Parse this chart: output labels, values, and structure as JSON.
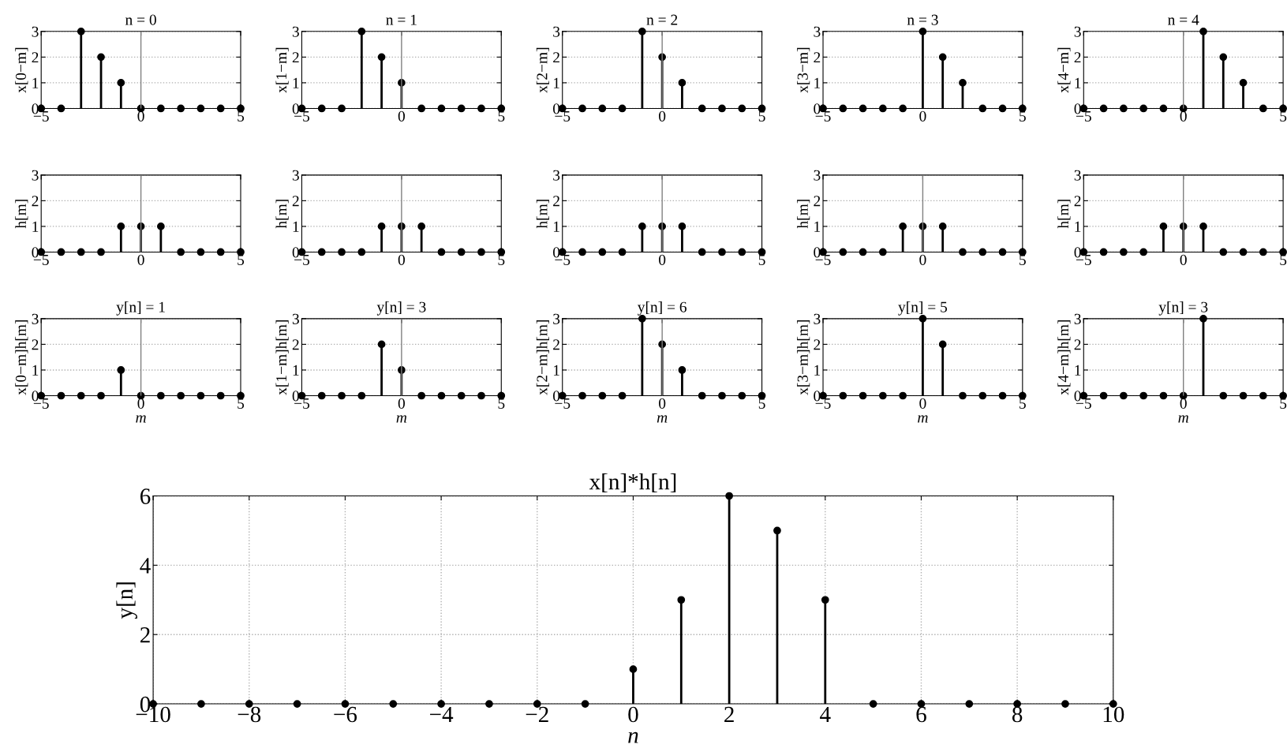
{
  "chart_data": [
    {
      "type": "lollipop",
      "title": "n = 0",
      "ylabel": "x[0−m]",
      "x": [
        -5,
        -4,
        -3,
        -2,
        -1,
        0,
        1,
        2,
        3,
        4,
        5
      ],
      "values": [
        0,
        0,
        3,
        2,
        1,
        0,
        0,
        0,
        0,
        0,
        0
      ],
      "xlim": [
        -5,
        5
      ],
      "ylim": [
        0,
        3
      ],
      "xticks": [
        {
          "value": -5,
          "label": "−5"
        },
        0,
        5
      ],
      "yticks": [
        0,
        1,
        2,
        3
      ],
      "grid": "y",
      "marker": "circle",
      "ref_lines": [
        {
          "axis": "x",
          "value": 0,
          "color": "#808080"
        }
      ]
    },
    {
      "type": "lollipop",
      "title": "n = 1",
      "ylabel": "x[1−m]",
      "x": [
        -5,
        -4,
        -3,
        -2,
        -1,
        0,
        1,
        2,
        3,
        4,
        5
      ],
      "values": [
        0,
        0,
        0,
        3,
        2,
        1,
        0,
        0,
        0,
        0,
        0
      ],
      "xlim": [
        -5,
        5
      ],
      "ylim": [
        0,
        3
      ],
      "xticks": [
        {
          "value": -5,
          "label": "−5"
        },
        0,
        5
      ],
      "yticks": [
        0,
        1,
        2,
        3
      ],
      "grid": "y",
      "marker": "circle",
      "ref_lines": [
        {
          "axis": "x",
          "value": 0,
          "color": "#808080"
        }
      ]
    },
    {
      "type": "lollipop",
      "title": "n = 2",
      "ylabel": "x[2−m]",
      "x": [
        -5,
        -4,
        -3,
        -2,
        -1,
        0,
        1,
        2,
        3,
        4,
        5
      ],
      "values": [
        0,
        0,
        0,
        0,
        3,
        2,
        1,
        0,
        0,
        0,
        0
      ],
      "xlim": [
        -5,
        5
      ],
      "ylim": [
        0,
        3
      ],
      "xticks": [
        {
          "value": -5,
          "label": "−5"
        },
        0,
        5
      ],
      "yticks": [
        0,
        1,
        2,
        3
      ],
      "grid": "y",
      "marker": "circle",
      "ref_lines": [
        {
          "axis": "x",
          "value": 0,
          "color": "#808080"
        }
      ]
    },
    {
      "type": "lollipop",
      "title": "n = 3",
      "ylabel": "x[3−m]",
      "x": [
        -5,
        -4,
        -3,
        -2,
        -1,
        0,
        1,
        2,
        3,
        4,
        5
      ],
      "values": [
        0,
        0,
        0,
        0,
        0,
        3,
        2,
        1,
        0,
        0,
        0
      ],
      "xlim": [
        -5,
        5
      ],
      "ylim": [
        0,
        3
      ],
      "xticks": [
        {
          "value": -5,
          "label": "−5"
        },
        0,
        5
      ],
      "yticks": [
        0,
        1,
        2,
        3
      ],
      "grid": "y",
      "marker": "circle"
    },
    {
      "type": "lollipop",
      "title": "n = 4",
      "ylabel": "x[4−m]",
      "x": [
        -5,
        -4,
        -3,
        -2,
        -1,
        0,
        1,
        2,
        3,
        4,
        5
      ],
      "values": [
        0,
        0,
        0,
        0,
        0,
        0,
        3,
        2,
        1,
        0,
        0
      ],
      "xlim": [
        -5,
        5
      ],
      "ylim": [
        0,
        3
      ],
      "xticks": [
        {
          "value": -5,
          "label": "−5"
        },
        0,
        5
      ],
      "yticks": [
        0,
        1,
        2,
        3
      ],
      "grid": "y",
      "marker": "circle",
      "ref_lines": [
        {
          "axis": "x",
          "value": 0,
          "color": "#808080"
        }
      ]
    },
    {
      "type": "lollipop",
      "ylabel": "h[m]",
      "x": [
        -5,
        -4,
        -3,
        -2,
        -1,
        0,
        1,
        2,
        3,
        4,
        5
      ],
      "values": [
        0,
        0,
        0,
        0,
        1,
        1,
        1,
        0,
        0,
        0,
        0
      ],
      "xlim": [
        -5,
        5
      ],
      "ylim": [
        0,
        3
      ],
      "xticks": [
        {
          "value": -5,
          "label": "−5"
        },
        0,
        5
      ],
      "yticks": [
        0,
        1,
        2,
        3
      ],
      "grid": "y",
      "marker": "circle",
      "ref_lines": [
        {
          "axis": "x",
          "value": 0,
          "color": "#808080"
        }
      ]
    },
    {
      "type": "lollipop",
      "ylabel": "h[m]",
      "x": [
        -5,
        -4,
        -3,
        -2,
        -1,
        0,
        1,
        2,
        3,
        4,
        5
      ],
      "values": [
        0,
        0,
        0,
        0,
        1,
        1,
        1,
        0,
        0,
        0,
        0
      ],
      "xlim": [
        -5,
        5
      ],
      "ylim": [
        0,
        3
      ],
      "xticks": [
        {
          "value": -5,
          "label": "−5"
        },
        0,
        5
      ],
      "yticks": [
        0,
        1,
        2,
        3
      ],
      "grid": "y",
      "marker": "circle",
      "ref_lines": [
        {
          "axis": "x",
          "value": 0,
          "color": "#808080"
        }
      ]
    },
    {
      "type": "lollipop",
      "ylabel": "h[m]",
      "x": [
        -5,
        -4,
        -3,
        -2,
        -1,
        0,
        1,
        2,
        3,
        4,
        5
      ],
      "values": [
        0,
        0,
        0,
        0,
        1,
        1,
        1,
        0,
        0,
        0,
        0
      ],
      "xlim": [
        -5,
        5
      ],
      "ylim": [
        0,
        3
      ],
      "xticks": [
        {
          "value": -5,
          "label": "−5"
        },
        0,
        5
      ],
      "yticks": [
        0,
        1,
        2,
        3
      ],
      "grid": "y",
      "marker": "circle",
      "ref_lines": [
        {
          "axis": "x",
          "value": 0,
          "color": "#808080"
        }
      ]
    },
    {
      "type": "lollipop",
      "ylabel": "h[m]",
      "x": [
        -5,
        -4,
        -3,
        -2,
        -1,
        0,
        1,
        2,
        3,
        4,
        5
      ],
      "values": [
        0,
        0,
        0,
        0,
        1,
        1,
        1,
        0,
        0,
        0,
        0
      ],
      "xlim": [
        -5,
        5
      ],
      "ylim": [
        0,
        3
      ],
      "xticks": [
        {
          "value": -5,
          "label": "−5"
        },
        0,
        5
      ],
      "yticks": [
        0,
        1,
        2,
        3
      ],
      "grid": "y",
      "marker": "circle",
      "ref_lines": [
        {
          "axis": "x",
          "value": 0,
          "color": "#808080"
        }
      ]
    },
    {
      "type": "lollipop",
      "ylabel": "h[m]",
      "x": [
        -5,
        -4,
        -3,
        -2,
        -1,
        0,
        1,
        2,
        3,
        4,
        5
      ],
      "values": [
        0,
        0,
        0,
        0,
        1,
        1,
        1,
        0,
        0,
        0,
        0
      ],
      "xlim": [
        -5,
        5
      ],
      "ylim": [
        0,
        3
      ],
      "xticks": [
        {
          "value": -5,
          "label": "−5"
        },
        0,
        5
      ],
      "yticks": [
        0,
        1,
        2,
        3
      ],
      "grid": "y",
      "marker": "circle",
      "ref_lines": [
        {
          "axis": "x",
          "value": 0,
          "color": "#808080"
        }
      ]
    },
    {
      "type": "lollipop",
      "title": "y[n] = 1",
      "ylabel": "x[0−m]h[m]",
      "xlabel": "m",
      "x": [
        -5,
        -4,
        -3,
        -2,
        -1,
        0,
        1,
        2,
        3,
        4,
        5
      ],
      "values": [
        0,
        0,
        0,
        0,
        1,
        0,
        0,
        0,
        0,
        0,
        0
      ],
      "xlim": [
        -5,
        5
      ],
      "ylim": [
        0,
        3
      ],
      "xticks": [
        {
          "value": -5,
          "label": "−5"
        },
        0,
        5
      ],
      "yticks": [
        0,
        1,
        2,
        3
      ],
      "grid": "y",
      "marker": "circle",
      "ref_lines": [
        {
          "axis": "x",
          "value": 0,
          "color": "#808080"
        }
      ]
    },
    {
      "type": "lollipop",
      "title": "y[n] = 3",
      "ylabel": "x[1−m]h[m]",
      "xlabel": "m",
      "x": [
        -5,
        -4,
        -3,
        -2,
        -1,
        0,
        1,
        2,
        3,
        4,
        5
      ],
      "values": [
        0,
        0,
        0,
        0,
        2,
        1,
        0,
        0,
        0,
        0,
        0
      ],
      "xlim": [
        -5,
        5
      ],
      "ylim": [
        0,
        3
      ],
      "xticks": [
        {
          "value": -5,
          "label": "−5"
        },
        0,
        5
      ],
      "yticks": [
        0,
        1,
        2,
        3
      ],
      "grid": "y",
      "marker": "circle",
      "ref_lines": [
        {
          "axis": "x",
          "value": 0,
          "color": "#808080"
        }
      ]
    },
    {
      "type": "lollipop",
      "title": "y[n] = 6",
      "ylabel": "x[2−m]h[m]",
      "xlabel": "m",
      "x": [
        -5,
        -4,
        -3,
        -2,
        -1,
        0,
        1,
        2,
        3,
        4,
        5
      ],
      "values": [
        0,
        0,
        0,
        0,
        3,
        2,
        1,
        0,
        0,
        0,
        0
      ],
      "xlim": [
        -5,
        5
      ],
      "ylim": [
        0,
        3
      ],
      "xticks": [
        {
          "value": -5,
          "label": "−5"
        },
        0,
        5
      ],
      "yticks": [
        0,
        1,
        2,
        3
      ],
      "grid": "y",
      "marker": "circle",
      "ref_lines": [
        {
          "axis": "x",
          "value": 0,
          "color": "#808080"
        }
      ]
    },
    {
      "type": "lollipop",
      "title": "y[n] = 5",
      "ylabel": "x[3−m]h[m]",
      "xlabel": "m",
      "x": [
        -5,
        -4,
        -3,
        -2,
        -1,
        0,
        1,
        2,
        3,
        4,
        5
      ],
      "values": [
        0,
        0,
        0,
        0,
        0,
        3,
        2,
        0,
        0,
        0,
        0
      ],
      "xlim": [
        -5,
        5
      ],
      "ylim": [
        0,
        3
      ],
      "xticks": [
        {
          "value": -5,
          "label": "−5"
        },
        0,
        5
      ],
      "yticks": [
        0,
        1,
        2,
        3
      ],
      "grid": "y",
      "marker": "circle"
    },
    {
      "type": "lollipop",
      "title": "y[n] = 3",
      "ylabel": "x[4−m]h[m]",
      "xlabel": "m",
      "x": [
        -5,
        -4,
        -3,
        -2,
        -1,
        0,
        1,
        2,
        3,
        4,
        5
      ],
      "values": [
        0,
        0,
        0,
        0,
        0,
        0,
        3,
        0,
        0,
        0,
        0
      ],
      "xlim": [
        -5,
        5
      ],
      "ylim": [
        0,
        3
      ],
      "xticks": [
        {
          "value": -5,
          "label": "−5"
        },
        0,
        5
      ],
      "yticks": [
        0,
        1,
        2,
        3
      ],
      "grid": "y",
      "marker": "circle",
      "ref_lines": [
        {
          "axis": "x",
          "value": 0,
          "color": "#808080"
        }
      ]
    },
    {
      "type": "lollipop",
      "title": "x[n]*h[n]",
      "ylabel": "y[n]",
      "xlabel": "n",
      "x": [
        -10,
        -9,
        -8,
        -7,
        -6,
        -5,
        -4,
        -3,
        -2,
        -1,
        0,
        1,
        2,
        3,
        4,
        5,
        6,
        7,
        8,
        9,
        10
      ],
      "values": [
        0,
        0,
        0,
        0,
        0,
        0,
        0,
        0,
        0,
        0,
        1,
        3,
        6,
        5,
        3,
        0,
        0,
        0,
        0,
        0,
        0
      ],
      "xlim": [
        -10,
        10
      ],
      "ylim": [
        0,
        6
      ],
      "xticks": [
        {
          "value": -10,
          "label": "−10"
        },
        {
          "value": -8,
          "label": "−8"
        },
        {
          "value": -6,
          "label": "−6"
        },
        {
          "value": -4,
          "label": "−4"
        },
        {
          "value": -2,
          "label": "−2"
        },
        0,
        2,
        4,
        6,
        8,
        10
      ],
      "yticks": [
        0,
        2,
        4,
        6
      ],
      "grid": true,
      "marker": "circle"
    }
  ]
}
